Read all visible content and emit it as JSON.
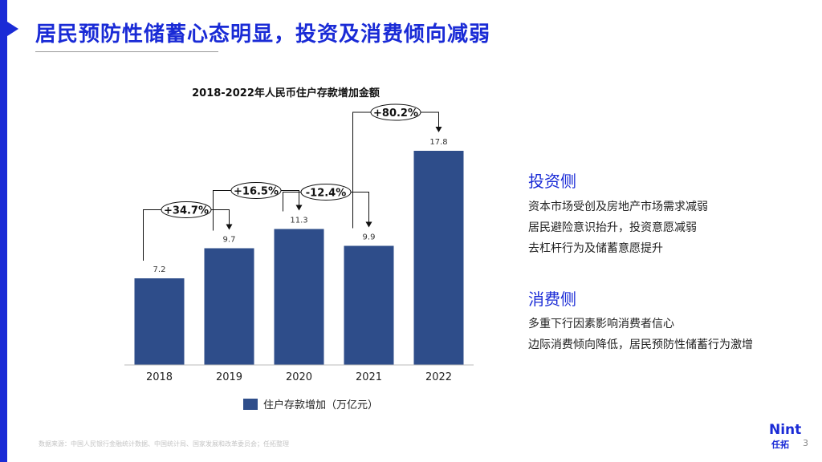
{
  "slide": {
    "title": "居民预防性储蓄心态明显，投资及消费倾向减弱",
    "accent_color": "#1a2bd6"
  },
  "chart_data": {
    "type": "bar",
    "title": "2018-2022年人民币住户存款增加金额",
    "categories": [
      "2018",
      "2019",
      "2020",
      "2021",
      "2022"
    ],
    "series": [
      {
        "name": "住户存款增加（万亿元）",
        "values": [
          7.2,
          9.7,
          11.3,
          9.9,
          17.8
        ],
        "color": "#2e4d8a"
      }
    ],
    "value_labels": [
      "7.2",
      "9.7",
      "11.3",
      "9.9",
      "17.8"
    ],
    "growth_annotations": [
      {
        "from": "2018",
        "to": "2019",
        "label": "+34.7%"
      },
      {
        "from": "2019",
        "to": "2020",
        "label": "+16.5%"
      },
      {
        "from": "2020",
        "to": "2021",
        "label": "-12.4%"
      },
      {
        "from": "2021",
        "to": "2022",
        "label": "+80.2%"
      }
    ],
    "ylim": [
      0,
      20
    ],
    "grid": false,
    "legend_position": "bottom"
  },
  "panel": {
    "investment": {
      "heading": "投资侧",
      "lines": [
        "资本市场受创及房地产市场需求减弱",
        "居民避险意识抬升，投资意愿减弱",
        "去杠杆行为及储蓄意愿提升"
      ]
    },
    "consumption": {
      "heading": "消费侧",
      "lines": [
        "多重下行因素影响消费者信心",
        "边际消费倾向降低，居民预防性储蓄行为激增"
      ]
    }
  },
  "footer": {
    "source": "数据来源：中国人民银行金融统计数据、中国统计局、国家发展和改革委员会；任拓整理",
    "logo_en": "Nint",
    "logo_cn": "任拓",
    "page_number": "3"
  }
}
